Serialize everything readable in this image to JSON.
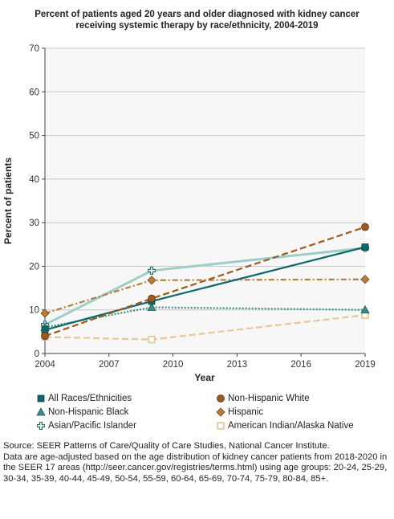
{
  "chart_data": {
    "type": "line",
    "title": "Percent of patients aged 20 years and older diagnosed with kidney cancer receiving systemic therapy by race/ethnicity, 2004-2019",
    "xlabel": "Year",
    "ylabel": "Percent of patients",
    "xlim": [
      2004,
      2019
    ],
    "ylim": [
      0,
      70
    ],
    "xticks": [
      2004,
      2007,
      2010,
      2013,
      2016,
      2019
    ],
    "yticks": [
      0,
      10,
      20,
      30,
      40,
      50,
      60,
      70
    ],
    "grid": "horizontal",
    "legend_position": "bottom",
    "series": [
      {
        "name": "All Races/Ethnicities",
        "x": [
          2004,
          2009,
          2019
        ],
        "values": [
          5.4,
          12.0,
          24.4
        ],
        "color": "#11686a",
        "marker": "square",
        "dash": "solid"
      },
      {
        "name": "Non-Hispanic White",
        "x": [
          2004,
          2009,
          2019
        ],
        "values": [
          4.0,
          12.6,
          29.0
        ],
        "color": "#9c5a21",
        "marker": "circle",
        "dash": "dashed"
      },
      {
        "name": "Non-Hispanic Black",
        "x": [
          2004,
          2009,
          2019
        ],
        "values": [
          6.0,
          10.6,
          10.0
        ],
        "color": "#3a8c8a",
        "marker": "triangle",
        "dash": "dotted"
      },
      {
        "name": "Hispanic",
        "x": [
          2004,
          2009,
          2019
        ],
        "values": [
          9.2,
          16.8,
          17.0
        ],
        "color": "#b77e3d",
        "marker": "diamond",
        "dash": "dashdot"
      },
      {
        "name": "Asian/Pacific Islander",
        "x": [
          2004,
          2009,
          2019
        ],
        "values": [
          6.6,
          19.0,
          24.2
        ],
        "color": "#9fcdc8",
        "marker": "plus",
        "dash": "solid"
      },
      {
        "name": "American Indian/Alaska Native",
        "x": [
          2004,
          2009,
          2019
        ],
        "values": [
          3.8,
          3.2,
          8.8
        ],
        "color": "#e6c898",
        "marker": "square-open",
        "dash": "dashed"
      }
    ]
  },
  "footnote": [
    "Source: SEER Patterns of Care/Quality of Care Studies, National Cancer Institute.",
    "Data are age-adjusted based on the age distribution of kidney cancer patients from 2018-2020 in the SEER 17 areas (http://seer.cancer.gov/registries/terms.html) using age groups: 20-24, 25-29, 30-34, 35-39, 40-44, 45-49, 50-54, 55-59, 60-64, 65-69, 70-74, 75-79, 80-84, 85+."
  ]
}
